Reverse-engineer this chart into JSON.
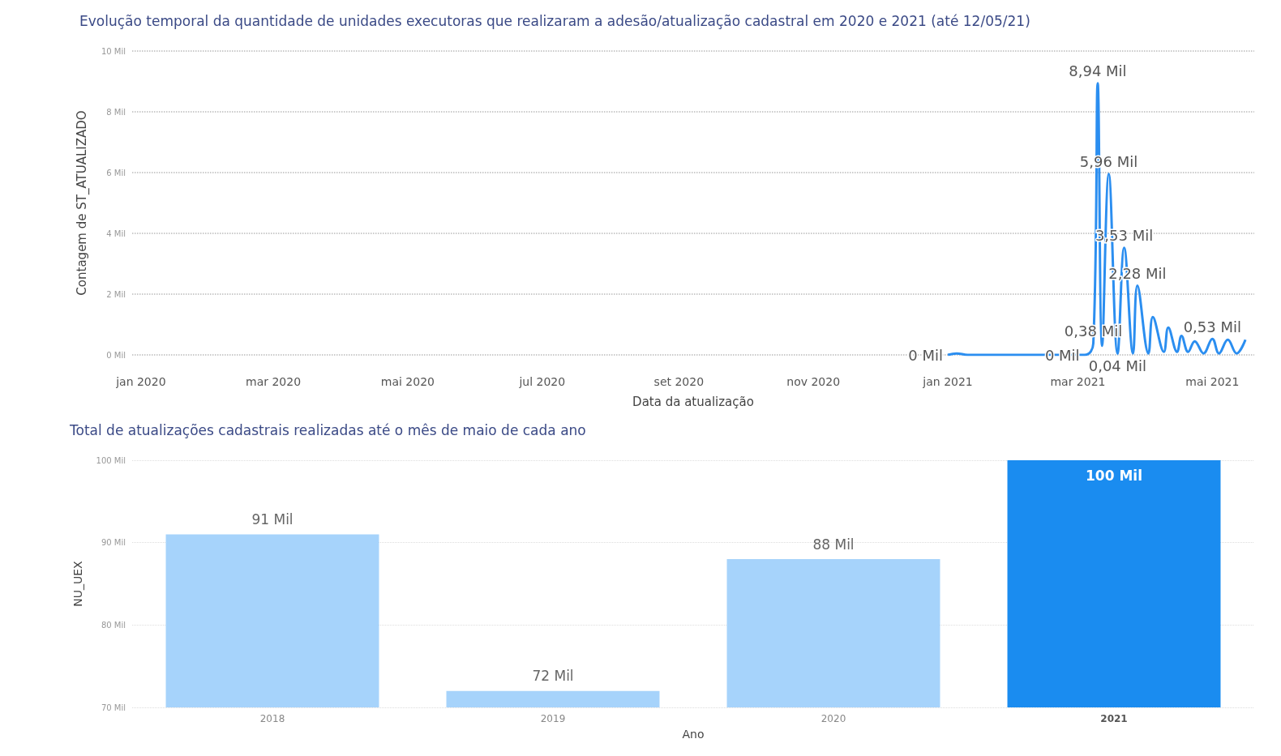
{
  "chart_data": [
    {
      "type": "line",
      "title": "Evolução temporal da quantidade de unidades executoras que realizaram a adesão/atualização cadastral em 2020 e 2021 (até 12/05/21)",
      "xlabel": "Data da atualização",
      "ylabel": "Contagem de ST_ATUALIZADO",
      "x": [
        "2021-01-01",
        "2021-01-05",
        "2021-01-10",
        "2021-03-04",
        "2021-03-08",
        "2021-03-10",
        "2021-03-12",
        "2021-03-15",
        "2021-03-19",
        "2021-03-22",
        "2021-03-26",
        "2021-03-28",
        "2021-04-02",
        "2021-04-04",
        "2021-04-09",
        "2021-04-11",
        "2021-04-15",
        "2021-04-17",
        "2021-04-20",
        "2021-04-23",
        "2021-04-27",
        "2021-05-01",
        "2021-05-04",
        "2021-05-08",
        "2021-05-12",
        "2021-05-16"
      ],
      "series": [
        {
          "color": "#2b8ef0",
          "values": [
            0,
            0.05,
            0,
            0,
            0.38,
            8.94,
            0.3,
            5.96,
            0.04,
            3.53,
            0.05,
            2.28,
            0.05,
            1.25,
            0.1,
            0.9,
            0.1,
            0.63,
            0.1,
            0.45,
            0.05,
            0.53,
            0.05,
            0.5,
            0.05,
            0.5
          ],
          "value_labels": [
            "0 Mil",
            null,
            null,
            "0 Mil",
            "0,38 Mil",
            "8,94 Mil",
            null,
            "5,96 Mil",
            "0,04 Mil",
            "3,53 Mil",
            null,
            "2,28 Mil",
            null,
            null,
            null,
            null,
            null,
            null,
            null,
            null,
            null,
            "0,53 Mil",
            null,
            null,
            null,
            null
          ]
        }
      ],
      "xlim": [
        "2019-12-28",
        "2021-05-20"
      ],
      "xticks": [
        {
          "value": "2020-01-01",
          "label": "jan 2020"
        },
        {
          "value": "2020-03-01",
          "label": "mar 2020"
        },
        {
          "value": "2020-05-01",
          "label": "mai 2020"
        },
        {
          "value": "2020-07-01",
          "label": "jul 2020"
        },
        {
          "value": "2020-09-01",
          "label": "set 2020"
        },
        {
          "value": "2020-11-01",
          "label": "nov 2020"
        },
        {
          "value": "2021-01-01",
          "label": "jan 2021"
        },
        {
          "value": "2021-03-01",
          "label": "mar 2021"
        },
        {
          "value": "2021-05-01",
          "label": "mai 2021"
        }
      ],
      "ylim": [
        0,
        10
      ],
      "yticks": [
        {
          "value": 0,
          "label": "0 Mil"
        },
        {
          "value": 2,
          "label": "2 Mil"
        },
        {
          "value": 4,
          "label": "4 Mil"
        },
        {
          "value": 6,
          "label": "6 Mil"
        },
        {
          "value": 8,
          "label": "8 Mil"
        },
        {
          "value": 10,
          "label": "10 Mil"
        }
      ],
      "grid": "y",
      "marker": "none"
    },
    {
      "type": "bar",
      "title": "Total de atualizações cadastrais realizadas até o mês de maio de cada ano",
      "xlabel": "Ano",
      "ylabel": "NU_UEX",
      "categories": [
        "2018",
        "2019",
        "2020",
        "2021"
      ],
      "values": [
        91,
        72,
        88,
        100
      ],
      "colors": [
        "#a6d3fb",
        "#a6d3fb",
        "#a6d3fb",
        "#1a8cf0"
      ],
      "value_labels": [
        "91 Mil",
        "72 Mil",
        "88 Mil",
        "100 Mil"
      ],
      "ylim": [
        70,
        100
      ],
      "yticks": [
        {
          "value": 70,
          "label": "70 Mil"
        },
        {
          "value": 80,
          "label": "80 Mil"
        },
        {
          "value": 90,
          "label": "90 Mil"
        },
        {
          "value": 100,
          "label": "100 Mil"
        }
      ],
      "grid": "y"
    }
  ]
}
